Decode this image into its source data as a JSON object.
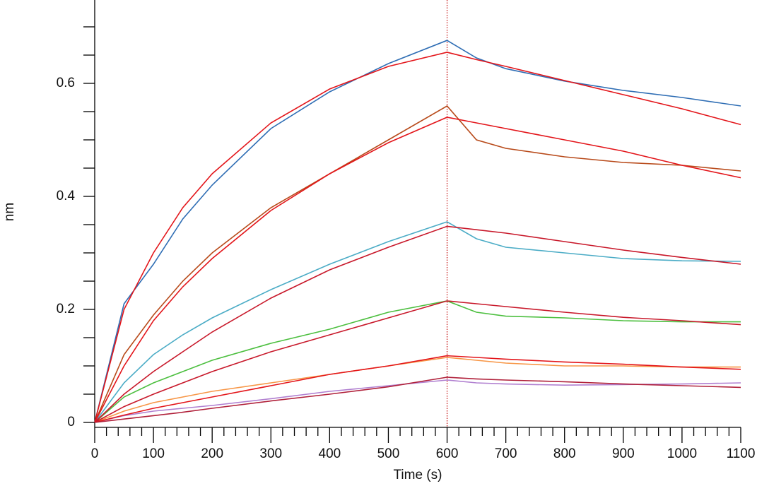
{
  "chart_data": {
    "type": "line",
    "xlabel": "Time (s)",
    "ylabel": "nm",
    "x": [
      0,
      50,
      100,
      150,
      200,
      300,
      400,
      500,
      600,
      650,
      700,
      800,
      900,
      1000,
      1100
    ],
    "series": [
      {
        "color": "#2e6db4",
        "values": [
          0,
          0.21,
          0.28,
          0.36,
          0.42,
          0.52,
          0.585,
          0.635,
          0.676,
          0.645,
          0.626,
          0.604,
          0.5875,
          0.575,
          0.56
        ]
      },
      {
        "color": "#b84a1a",
        "values": [
          0,
          0.12,
          0.19,
          0.25,
          0.3,
          0.38,
          0.44,
          0.5,
          0.56,
          0.5,
          0.485,
          0.47,
          0.46,
          0.455,
          0.445
        ]
      },
      {
        "color": "#4bacc6",
        "values": [
          0,
          0.07,
          0.12,
          0.155,
          0.185,
          0.235,
          0.28,
          0.32,
          0.355,
          0.325,
          0.31,
          0.3,
          0.29,
          0.286,
          0.285
        ]
      },
      {
        "color": "#4cbf3f",
        "values": [
          0,
          0.045,
          0.07,
          0.09,
          0.11,
          0.14,
          0.165,
          0.195,
          0.215,
          0.195,
          0.188,
          0.185,
          0.18,
          0.178,
          0.178
        ]
      },
      {
        "color": "#f79646",
        "values": [
          0,
          0.02,
          0.035,
          0.045,
          0.055,
          0.07,
          0.085,
          0.1,
          0.115,
          0.11,
          0.105,
          0.1,
          0.1,
          0.098,
          0.098
        ]
      },
      {
        "color": "#b07fd0",
        "values": [
          0,
          0.012,
          0.02,
          0.025,
          0.03,
          0.042,
          0.055,
          0.065,
          0.075,
          0.07,
          0.068,
          0.066,
          0.067,
          0.068,
          0.07
        ]
      },
      {
        "color": "#e3151a",
        "values": [
          0,
          0.2,
          0.3,
          0.38,
          0.44,
          0.53,
          0.59,
          0.63,
          0.655,
          0.642,
          0.63,
          0.605,
          0.58,
          0.555,
          0.527
        ]
      },
      {
        "color": "#e3151a",
        "values": [
          0,
          0.1,
          0.18,
          0.24,
          0.29,
          0.375,
          0.44,
          0.495,
          0.54,
          0.53,
          0.52,
          0.5,
          0.48,
          0.455,
          0.433
        ]
      },
      {
        "color": "#c8182a",
        "values": [
          0,
          0.05,
          0.09,
          0.125,
          0.16,
          0.22,
          0.27,
          0.31,
          0.347,
          0.341,
          0.335,
          0.32,
          0.305,
          0.292,
          0.28
        ]
      },
      {
        "color": "#c8182a",
        "values": [
          0,
          0.028,
          0.05,
          0.07,
          0.09,
          0.125,
          0.155,
          0.185,
          0.215,
          0.21,
          0.205,
          0.195,
          0.186,
          0.18,
          0.173
        ]
      },
      {
        "color": "#e3151a",
        "values": [
          0,
          0.013,
          0.025,
          0.035,
          0.045,
          0.065,
          0.085,
          0.1,
          0.118,
          0.115,
          0.112,
          0.107,
          0.103,
          0.098,
          0.094
        ]
      },
      {
        "color": "#b0203a",
        "values": [
          0,
          0.006,
          0.012,
          0.018,
          0.025,
          0.038,
          0.05,
          0.063,
          0.08,
          0.077,
          0.075,
          0.072,
          0.068,
          0.065,
          0.062
        ]
      }
    ],
    "xlim": [
      0,
      1100
    ],
    "ylim": [
      -0.00875,
      0.7475
    ],
    "xticks": [
      0,
      100,
      200,
      300,
      400,
      500,
      600,
      700,
      800,
      900,
      1000,
      1100
    ],
    "yticks": [
      0,
      0.2,
      0.4,
      0.6
    ],
    "xminorticks": [
      20,
      40,
      60,
      80,
      120,
      140,
      160,
      180,
      220,
      240,
      260,
      280,
      320,
      340,
      360,
      380,
      420,
      440,
      460,
      480,
      520,
      540,
      560,
      580,
      620,
      640,
      660,
      680,
      720,
      740,
      760,
      780,
      820,
      840,
      860,
      880,
      920,
      940,
      960,
      980,
      1020,
      1040,
      1060,
      1080
    ],
    "yminorticks": [
      0.05,
      0.1,
      0.15,
      0.25,
      0.3,
      0.35,
      0.45,
      0.5,
      0.55,
      0.65,
      0.7
    ],
    "vline": {
      "value": 600,
      "color": "#c00000"
    }
  }
}
